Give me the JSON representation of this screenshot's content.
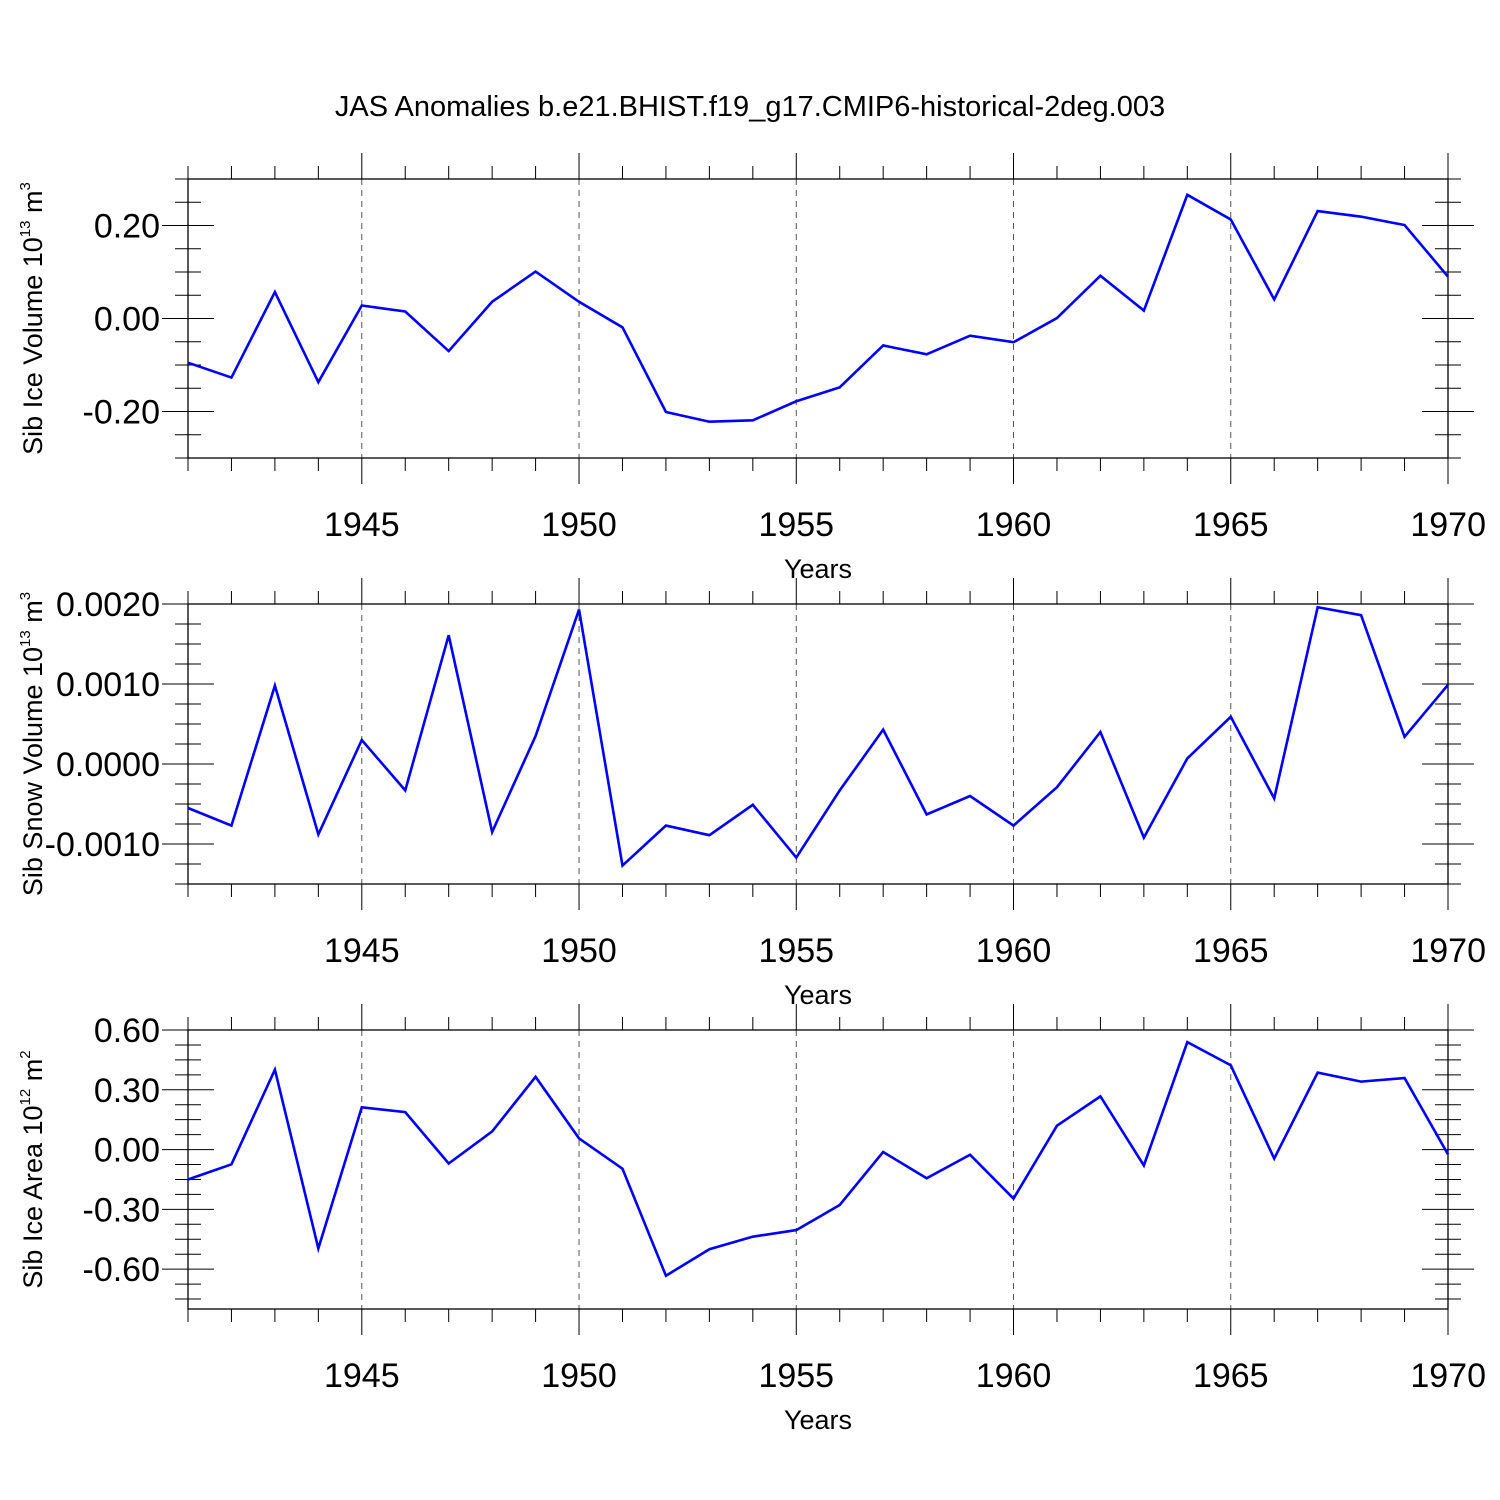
{
  "figure_title": "JAS Anomalies b.e21.BHIST.f19_g17.CMIP6-historical-2deg.003",
  "colors": {
    "series": "#0000ff",
    "axis": "#000000",
    "grid": "#555555"
  },
  "chart_data": [
    {
      "type": "line",
      "title": "",
      "ylabel": {
        "text": "Sib Ice Volume 10",
        "exp": "13",
        "unit": " m",
        "unit_exp": "3"
      },
      "xlabel": "Years",
      "xlim": [
        1941,
        1970
      ],
      "ylim": [
        -0.3,
        0.3
      ],
      "xticks": [
        1945,
        1950,
        1955,
        1960,
        1965,
        1970
      ],
      "xtick_labels": [
        "1945",
        "1950",
        "1955",
        "1960",
        "1965",
        "1970"
      ],
      "yticks": [
        0.2,
        0.0,
        -0.2
      ],
      "ytick_labels": [
        "0.20",
        "0.00",
        "-0.20"
      ],
      "grid": "vertical dashed at major x ticks",
      "series": [
        {
          "x": [
            1941,
            1942,
            1943,
            1944,
            1945,
            1946,
            1947,
            1948,
            1949,
            1950,
            1951,
            1952,
            1953,
            1954,
            1955,
            1956,
            1957,
            1958,
            1959,
            1960,
            1961,
            1962,
            1963,
            1964,
            1965,
            1966,
            1967,
            1968,
            1969,
            1970
          ],
          "values": [
            -0.095,
            -0.127,
            0.057,
            -0.137,
            0.028,
            0.015,
            -0.07,
            0.036,
            0.101,
            0.036,
            -0.019,
            -0.201,
            -0.222,
            -0.219,
            -0.178,
            -0.148,
            -0.058,
            -0.077,
            -0.037,
            -0.051,
            0.001,
            0.092,
            0.017,
            0.266,
            0.213,
            0.041,
            0.231,
            0.219,
            0.201,
            0.09
          ]
        }
      ]
    },
    {
      "type": "line",
      "title": "",
      "ylabel": {
        "text": "Sib Snow Volume 10",
        "exp": "13",
        "unit": " m",
        "unit_exp": "3"
      },
      "xlabel": "Years",
      "xlim": [
        1941,
        1970
      ],
      "ylim": [
        -0.0015,
        0.002
      ],
      "xticks": [
        1945,
        1950,
        1955,
        1960,
        1965,
        1970
      ],
      "xtick_labels": [
        "1945",
        "1950",
        "1955",
        "1960",
        "1965",
        "1970"
      ],
      "yticks": [
        0.002,
        0.001,
        0.0,
        -0.001
      ],
      "ytick_labels": [
        "0.0020",
        "0.0010",
        "0.0000",
        "-0.0010"
      ],
      "grid": "vertical dashed at major x ticks",
      "series": [
        {
          "x": [
            1941,
            1942,
            1943,
            1944,
            1945,
            1946,
            1947,
            1948,
            1949,
            1950,
            1951,
            1952,
            1953,
            1954,
            1955,
            1956,
            1957,
            1958,
            1959,
            1960,
            1961,
            1962,
            1963,
            1964,
            1965,
            1966,
            1967,
            1968,
            1969,
            1970
          ],
          "values": [
            -0.00055,
            -0.00077,
            0.00098,
            -0.00088,
            0.0003,
            -0.00033,
            0.00161,
            -0.00085,
            0.00035,
            0.00193,
            -0.00127,
            -0.00077,
            -0.00089,
            -0.00051,
            -0.00117,
            -0.00033,
            0.00043,
            -0.00063,
            -0.0004,
            -0.00077,
            -0.00029,
            0.0004,
            -0.00092,
            7e-05,
            0.00059,
            -0.00043,
            0.00196,
            0.00186,
            0.00034,
            0.00099
          ]
        }
      ]
    },
    {
      "type": "line",
      "title": "",
      "ylabel": {
        "text": "Sib Ice Area 10",
        "exp": "12",
        "unit": " m",
        "unit_exp": "2"
      },
      "xlabel": "Years",
      "xlim": [
        1941,
        1970
      ],
      "ylim": [
        -0.8,
        0.6
      ],
      "xticks": [
        1945,
        1950,
        1955,
        1960,
        1965,
        1970
      ],
      "xtick_labels": [
        "1945",
        "1950",
        "1955",
        "1960",
        "1965",
        "1970"
      ],
      "yticks": [
        0.6,
        0.3,
        0.0,
        -0.3,
        -0.6
      ],
      "ytick_labels": [
        "0.60",
        "0.30",
        "0.00",
        "-0.30",
        "-0.60"
      ],
      "grid": "vertical dashed at major x ticks",
      "series": [
        {
          "x": [
            1941,
            1942,
            1943,
            1944,
            1945,
            1946,
            1947,
            1948,
            1949,
            1950,
            1951,
            1952,
            1953,
            1954,
            1955,
            1956,
            1957,
            1958,
            1959,
            1960,
            1961,
            1962,
            1963,
            1964,
            1965,
            1966,
            1967,
            1968,
            1969,
            1970
          ],
          "values": [
            -0.15,
            -0.074,
            0.401,
            -0.496,
            0.212,
            0.188,
            -0.07,
            0.091,
            0.365,
            0.056,
            -0.096,
            -0.633,
            -0.5,
            -0.437,
            -0.404,
            -0.278,
            -0.012,
            -0.144,
            -0.026,
            -0.246,
            0.12,
            0.267,
            -0.08,
            0.539,
            0.423,
            -0.045,
            0.386,
            0.341,
            0.359,
            -0.024
          ]
        }
      ]
    }
  ]
}
